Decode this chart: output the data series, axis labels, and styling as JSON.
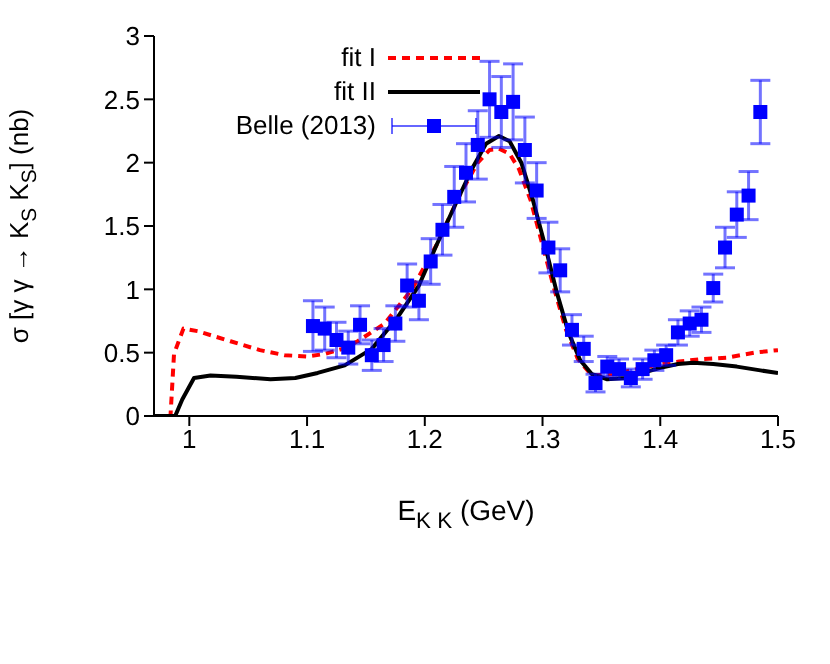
{
  "chart_data": {
    "type": "line",
    "xlabel": "E$_{K K}$  (GeV)",
    "ylabel": "σ [γ γ → K$_{S}$ K$_{S}$] (nb)",
    "xlim": [
      0.97,
      1.5
    ],
    "xticks": [
      1,
      1.1,
      1.2,
      1.3,
      1.4,
      1.5
    ],
    "ylim": [
      0,
      3
    ],
    "yticks": [
      0,
      0.5,
      1,
      1.5,
      2,
      2.5,
      3
    ],
    "grid": false,
    "legend": "top left",
    "series": [
      {
        "name": "fit I",
        "color": "#ff0000",
        "line_style": "dashed",
        "marker": "none",
        "x": [
          0.97,
          0.984,
          0.987,
          0.995,
          1.007,
          1.035,
          1.06,
          1.081,
          1.1,
          1.115,
          1.13,
          1.143,
          1.166,
          1.189,
          1.21,
          1.23,
          1.245,
          1.255,
          1.263,
          1.272,
          1.28,
          1.29,
          1.3,
          1.31,
          1.32,
          1.33,
          1.342,
          1.36,
          1.38,
          1.4,
          1.416,
          1.436,
          1.456,
          1.48,
          1.5
        ],
        "values": [
          0,
          0,
          0.49,
          0.69,
          0.67,
          0.59,
          0.52,
          0.48,
          0.47,
          0.49,
          0.53,
          0.59,
          0.73,
          1.0,
          1.35,
          1.75,
          2.0,
          2.1,
          2.11,
          2.07,
          1.95,
          1.7,
          1.35,
          1.0,
          0.68,
          0.45,
          0.32,
          0.33,
          0.37,
          0.41,
          0.43,
          0.45,
          0.46,
          0.5,
          0.52
        ]
      },
      {
        "name": "fit II",
        "color": "#000000",
        "line_style": "solid",
        "marker": "none",
        "x": [
          0.97,
          0.988,
          0.994,
          1.004,
          1.018,
          1.04,
          1.069,
          1.09,
          1.109,
          1.132,
          1.155,
          1.177,
          1.195,
          1.21,
          1.225,
          1.24,
          1.252,
          1.263,
          1.272,
          1.282,
          1.292,
          1.302,
          1.312,
          1.322,
          1.332,
          1.342,
          1.355,
          1.37,
          1.385,
          1.4,
          1.415,
          1.428,
          1.445,
          1.465,
          1.485,
          1.5
        ],
        "values": [
          0,
          0,
          0.13,
          0.3,
          0.32,
          0.31,
          0.29,
          0.3,
          0.34,
          0.4,
          0.53,
          0.78,
          1.03,
          1.35,
          1.65,
          1.95,
          2.15,
          2.21,
          2.17,
          2.0,
          1.7,
          1.35,
          0.98,
          0.66,
          0.44,
          0.33,
          0.29,
          0.3,
          0.34,
          0.38,
          0.41,
          0.42,
          0.41,
          0.39,
          0.36,
          0.34
        ]
      },
      {
        "name": "Belle (2013)",
        "type": "scatter",
        "color": "#0000ff",
        "marker": "square",
        "x": [
          1.105,
          1.115,
          1.125,
          1.135,
          1.145,
          1.155,
          1.165,
          1.175,
          1.185,
          1.195,
          1.205,
          1.215,
          1.225,
          1.235,
          1.245,
          1.255,
          1.265,
          1.275,
          1.285,
          1.295,
          1.305,
          1.315,
          1.325,
          1.335,
          1.345,
          1.355,
          1.365,
          1.375,
          1.385,
          1.395,
          1.405,
          1.415,
          1.425,
          1.435,
          1.445,
          1.455,
          1.465,
          1.475,
          1.485
        ],
        "values": [
          0.71,
          0.69,
          0.6,
          0.54,
          0.72,
          0.48,
          0.56,
          0.73,
          1.03,
          0.91,
          1.22,
          1.47,
          1.73,
          1.92,
          2.14,
          2.5,
          2.4,
          2.48,
          2.1,
          1.78,
          1.33,
          1.15,
          0.68,
          0.53,
          0.26,
          0.39,
          0.37,
          0.3,
          0.37,
          0.44,
          0.48,
          0.66,
          0.73,
          0.76,
          1.01,
          1.33,
          1.59,
          1.74,
          2.4
        ],
        "errors": [
          0.2,
          0.17,
          0.14,
          0.13,
          0.15,
          0.12,
          0.13,
          0.14,
          0.17,
          0.15,
          0.18,
          0.2,
          0.24,
          0.23,
          0.27,
          0.3,
          0.28,
          0.3,
          0.26,
          0.22,
          0.2,
          0.17,
          0.12,
          0.1,
          0.07,
          0.08,
          0.08,
          0.07,
          0.08,
          0.08,
          0.08,
          0.1,
          0.1,
          0.1,
          0.11,
          0.16,
          0.18,
          0.19,
          0.25
        ]
      }
    ]
  }
}
